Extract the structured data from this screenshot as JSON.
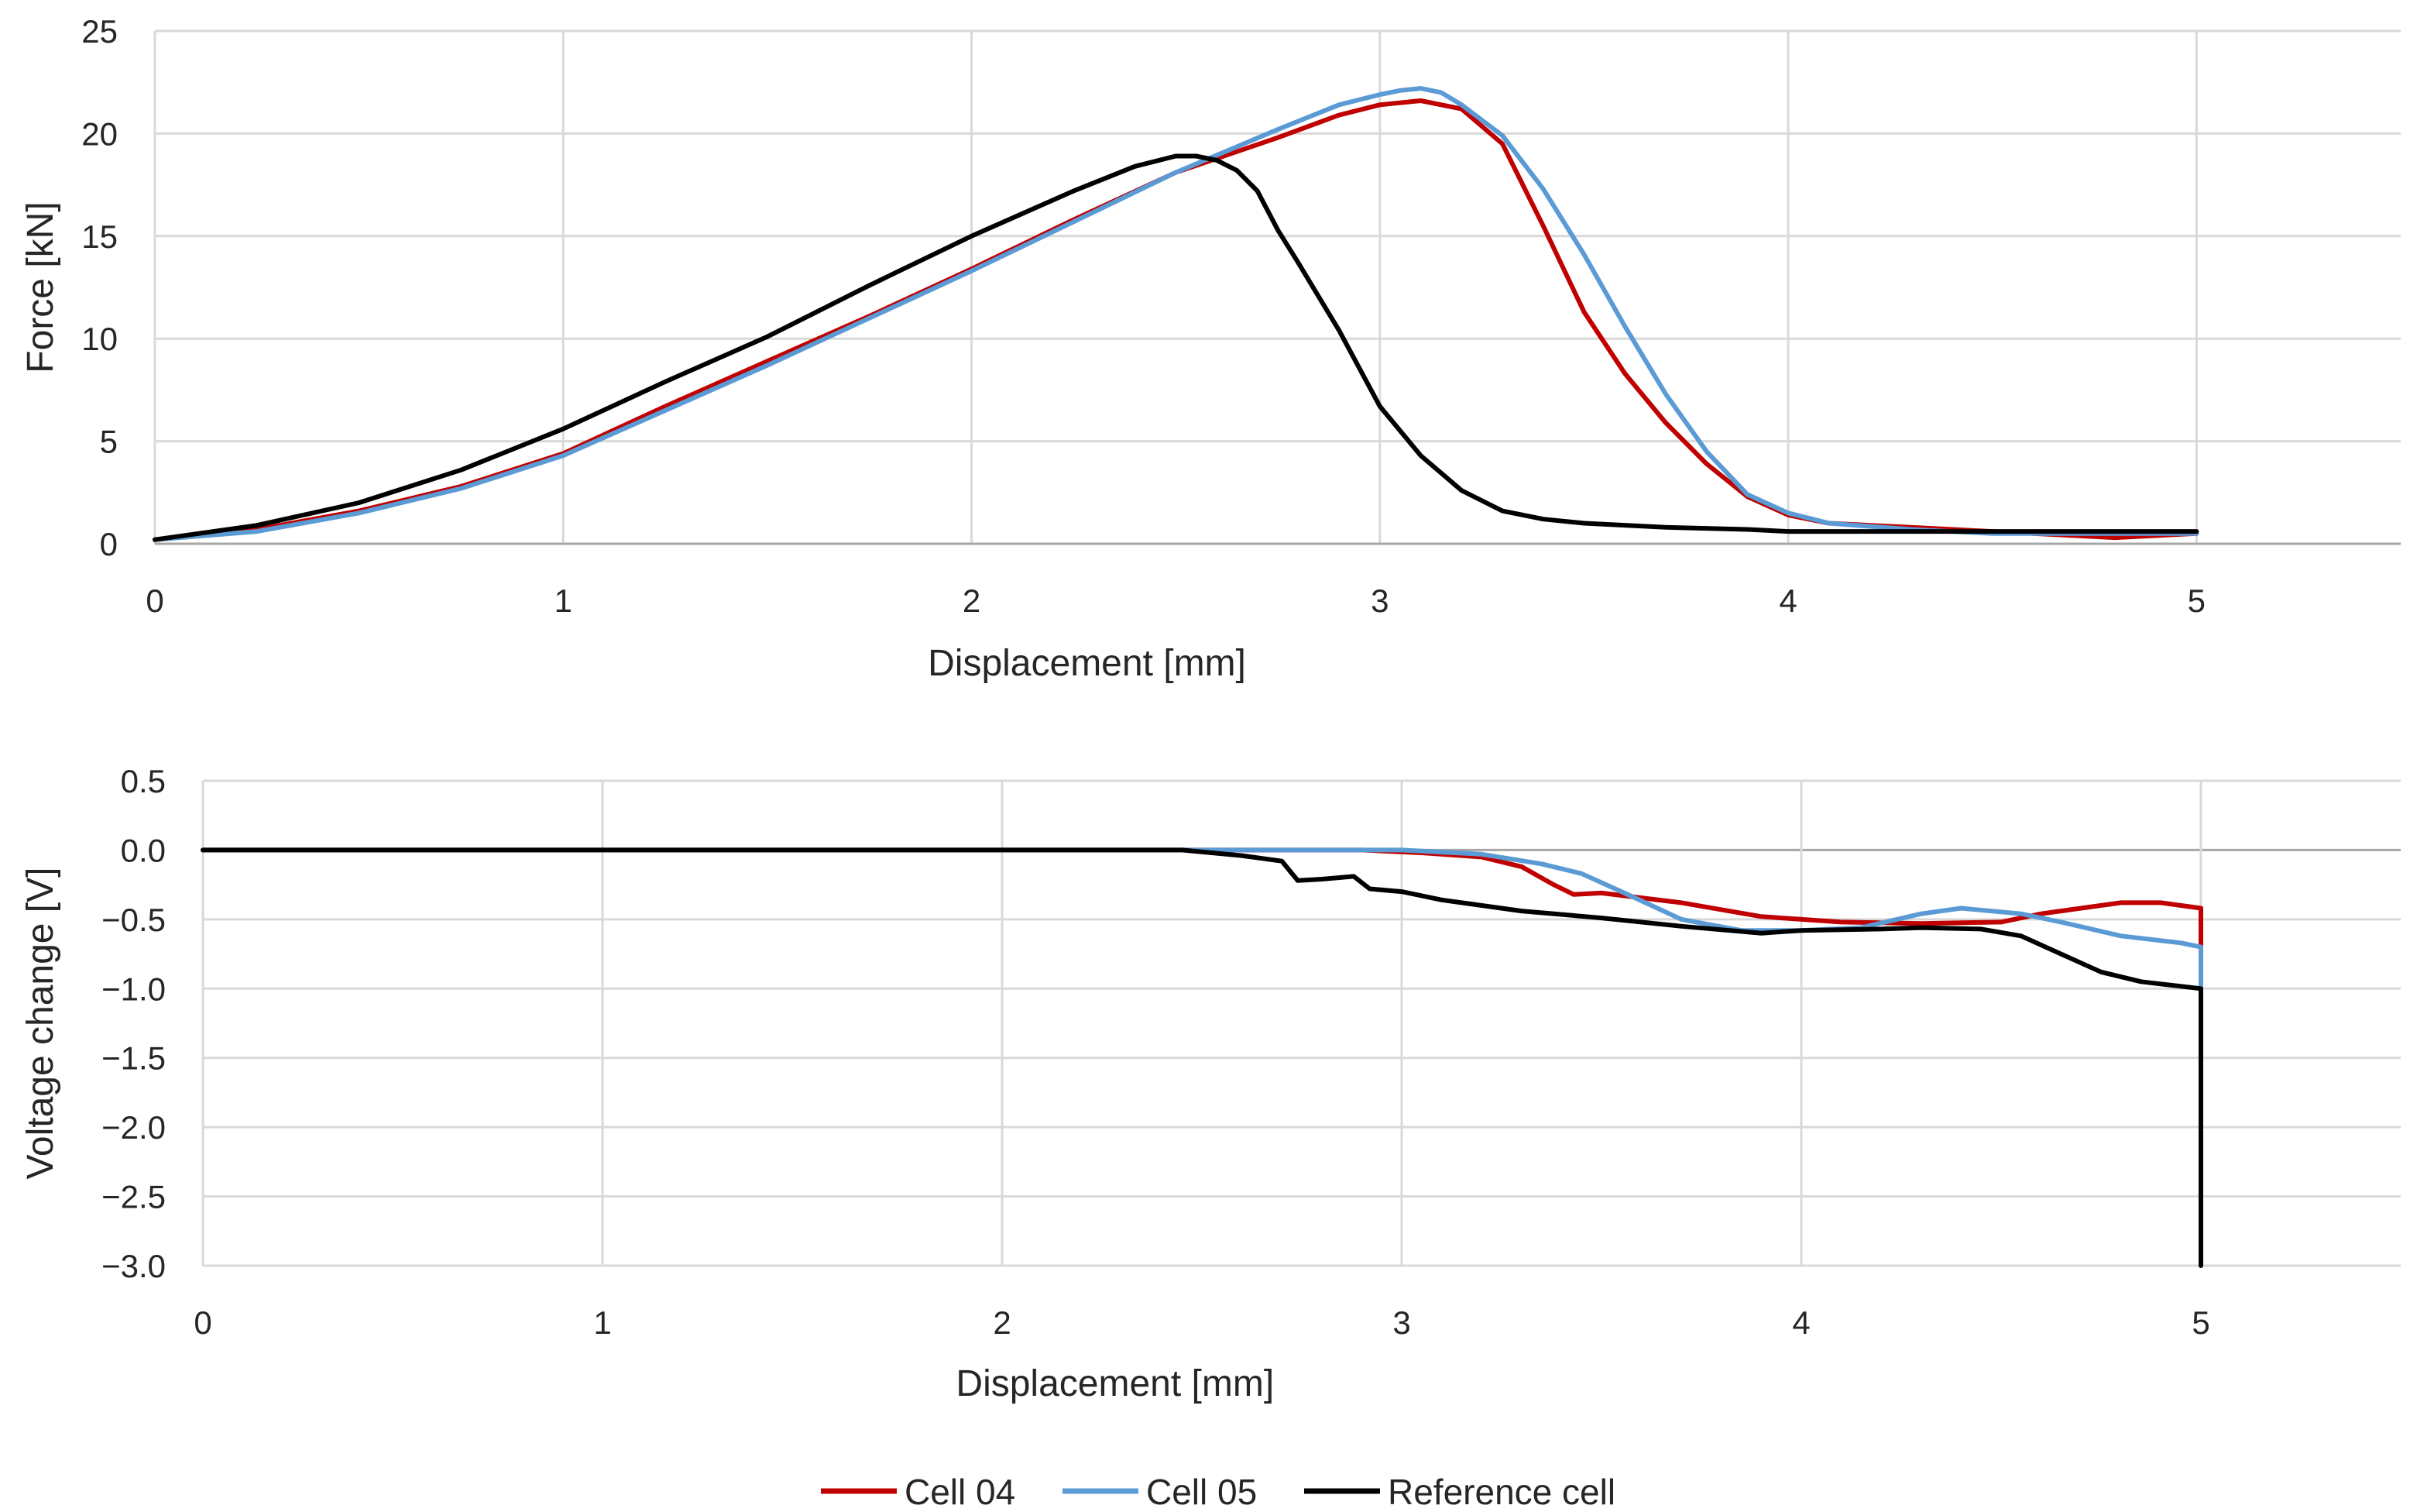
{
  "colors": {
    "cell04": "#C00000",
    "cell05": "#5B9BD5",
    "reference": "#000000",
    "grid": "#D9D9D9",
    "text": "#262626"
  },
  "legend": {
    "position": "bottom-center",
    "items": [
      {
        "label": "Cell 04",
        "color": "#C00000"
      },
      {
        "label": "Cell 05",
        "color": "#5B9BD5"
      },
      {
        "label": "Reference cell",
        "color": "#000000"
      }
    ]
  },
  "chart_data": [
    {
      "type": "line",
      "title": "",
      "xlabel": "Displacement [mm]",
      "ylabel": "Force [kN]",
      "xlim": [
        0,
        5.5
      ],
      "ylim": [
        0,
        25
      ],
      "xticks": [
        0,
        1,
        2,
        3,
        4,
        5
      ],
      "xtick_labels": [
        "0",
        "1",
        "2",
        "3",
        "4",
        "5"
      ],
      "yticks": [
        0,
        5,
        10,
        15,
        20,
        25
      ],
      "ytick_labels": [
        "0",
        "5",
        "10",
        "15",
        "20",
        "25"
      ],
      "grid": true,
      "series": [
        {
          "name": "Cell 04",
          "color": "#C00000",
          "x": [
            0,
            0.25,
            0.5,
            0.75,
            1.0,
            1.25,
            1.5,
            1.75,
            2.0,
            2.25,
            2.5,
            2.75,
            2.9,
            3.0,
            3.1,
            3.2,
            3.3,
            3.4,
            3.5,
            3.6,
            3.7,
            3.8,
            3.9,
            4.0,
            4.1,
            4.3,
            4.5,
            4.7,
            4.8,
            5.0
          ],
          "y": [
            0.2,
            0.7,
            1.6,
            2.8,
            4.4,
            6.7,
            8.9,
            11.1,
            13.4,
            15.8,
            18.1,
            19.8,
            20.9,
            21.4,
            21.6,
            21.2,
            19.5,
            15.5,
            11.3,
            8.3,
            5.9,
            3.9,
            2.3,
            1.4,
            1.0,
            0.8,
            0.6,
            0.4,
            0.3,
            0.5
          ]
        },
        {
          "name": "Cell 05",
          "color": "#5B9BD5",
          "x": [
            0,
            0.25,
            0.5,
            0.75,
            1.0,
            1.25,
            1.5,
            1.75,
            2.0,
            2.25,
            2.5,
            2.75,
            2.9,
            3.0,
            3.05,
            3.1,
            3.15,
            3.2,
            3.3,
            3.4,
            3.5,
            3.6,
            3.7,
            3.8,
            3.9,
            4.0,
            4.1,
            4.3,
            4.5,
            5.0
          ],
          "y": [
            0.2,
            0.6,
            1.5,
            2.7,
            4.3,
            6.5,
            8.7,
            11.0,
            13.3,
            15.7,
            18.1,
            20.2,
            21.4,
            21.9,
            22.1,
            22.2,
            22.0,
            21.4,
            19.9,
            17.3,
            14.1,
            10.6,
            7.3,
            4.5,
            2.4,
            1.5,
            1.0,
            0.7,
            0.5,
            0.5
          ]
        },
        {
          "name": "Reference cell",
          "color": "#000000",
          "x": [
            0,
            0.25,
            0.5,
            0.75,
            1.0,
            1.25,
            1.5,
            1.75,
            2.0,
            2.25,
            2.4,
            2.5,
            2.55,
            2.6,
            2.65,
            2.7,
            2.75,
            2.8,
            2.9,
            3.0,
            3.1,
            3.2,
            3.3,
            3.4,
            3.5,
            3.7,
            3.9,
            4.0,
            4.5,
            5.0
          ],
          "y": [
            0.2,
            0.9,
            2.0,
            3.6,
            5.6,
            7.9,
            10.1,
            12.6,
            15.0,
            17.2,
            18.4,
            18.9,
            18.9,
            18.7,
            18.2,
            17.2,
            15.3,
            13.7,
            10.4,
            6.7,
            4.3,
            2.6,
            1.6,
            1.2,
            1.0,
            0.8,
            0.7,
            0.6,
            0.6,
            0.6
          ]
        }
      ]
    },
    {
      "type": "line",
      "title": "",
      "xlabel": "Displacement [mm]",
      "ylabel": "Voltage change [V]",
      "xlim": [
        0,
        5.5
      ],
      "ylim": [
        -3.0,
        0.5
      ],
      "xticks": [
        0,
        1,
        2,
        3,
        4,
        5
      ],
      "xtick_labels": [
        "0",
        "1",
        "2",
        "3",
        "4",
        "5"
      ],
      "yticks": [
        0.5,
        0.0,
        -0.5,
        -1.0,
        -1.5,
        -2.0,
        -2.5,
        -3.0
      ],
      "ytick_labels": [
        "0.5",
        "0.0",
        "−0.5",
        "−1.0",
        "−1.5",
        "−2.0",
        "−2.5",
        "−3.0"
      ],
      "grid": true,
      "series": [
        {
          "name": "Cell 04",
          "color": "#C00000",
          "x": [
            0,
            2.45,
            2.9,
            3.05,
            3.2,
            3.3,
            3.38,
            3.43,
            3.5,
            3.7,
            3.9,
            4.1,
            4.3,
            4.5,
            4.6,
            4.7,
            4.8,
            4.9,
            4.95,
            5.0,
            5.0
          ],
          "y": [
            0,
            0,
            0,
            -0.02,
            -0.05,
            -0.12,
            -0.25,
            -0.32,
            -0.31,
            -0.38,
            -0.48,
            -0.52,
            -0.53,
            -0.52,
            -0.46,
            -0.42,
            -0.38,
            -0.38,
            -0.4,
            -0.42,
            -0.7
          ]
        },
        {
          "name": "Cell 05",
          "color": "#5B9BD5",
          "x": [
            0,
            2.45,
            3.0,
            3.2,
            3.35,
            3.45,
            3.55,
            3.7,
            3.85,
            4.0,
            4.15,
            4.3,
            4.4,
            4.55,
            4.65,
            4.8,
            4.95,
            5.0,
            5.0
          ],
          "y": [
            0,
            0,
            0,
            -0.03,
            -0.1,
            -0.17,
            -0.3,
            -0.5,
            -0.58,
            -0.58,
            -0.56,
            -0.46,
            -0.42,
            -0.46,
            -0.52,
            -0.62,
            -0.67,
            -0.7,
            -1.0
          ]
        },
        {
          "name": "Reference cell",
          "color": "#000000",
          "x": [
            0,
            2.45,
            2.6,
            2.7,
            2.72,
            2.74,
            2.8,
            2.88,
            2.92,
            3.0,
            3.1,
            3.3,
            3.5,
            3.7,
            3.9,
            4.0,
            4.2,
            4.3,
            4.45,
            4.55,
            4.65,
            4.75,
            4.85,
            5.0,
            5.0
          ],
          "y": [
            0,
            0,
            -0.04,
            -0.08,
            -0.15,
            -0.22,
            -0.21,
            -0.19,
            -0.28,
            -0.3,
            -0.36,
            -0.44,
            -0.49,
            -0.55,
            -0.6,
            -0.58,
            -0.57,
            -0.56,
            -0.57,
            -0.62,
            -0.75,
            -0.88,
            -0.95,
            -1.0,
            -3.0
          ]
        }
      ]
    }
  ]
}
